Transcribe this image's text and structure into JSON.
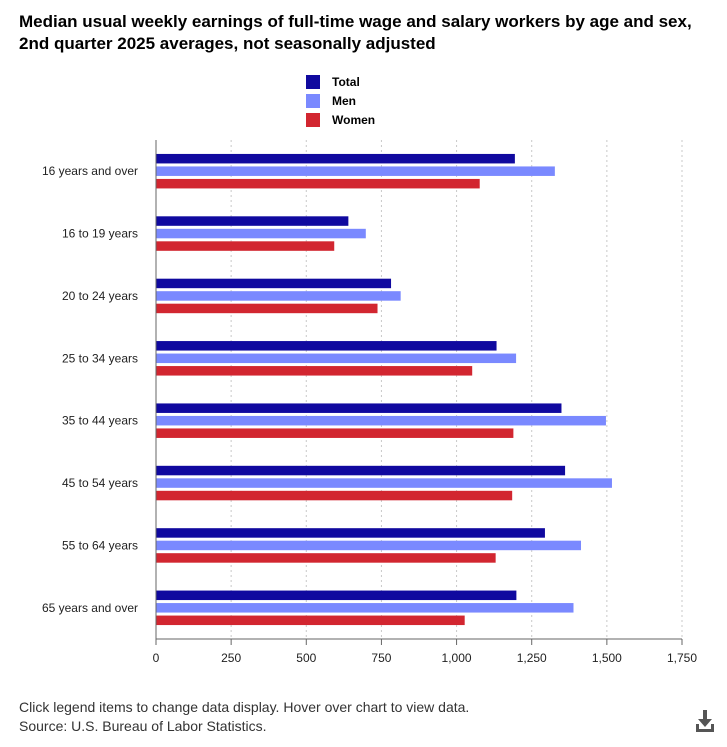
{
  "title": "Median usual weekly earnings of full-time wage and salary workers by age and sex, 2nd quarter 2025 averages, not seasonally adjusted",
  "footer": {
    "note": "Click legend items to change data display. Hover over chart to view data.",
    "source": "Source: U.S. Bureau of Labor Statistics."
  },
  "icons": {
    "download": "download-icon"
  },
  "chart_data": {
    "type": "bar",
    "orientation": "horizontal",
    "categories": [
      "16 years and over",
      "16 to 19 years",
      "20 to 24 years",
      "25 to 34 years",
      "35 to 44 years",
      "45 to 54 years",
      "55 to 64 years",
      "65 years and over"
    ],
    "series": [
      {
        "name": "Total",
        "color": "#10099f",
        "values": [
          1194,
          640,
          782,
          1133,
          1349,
          1361,
          1294,
          1199
        ]
      },
      {
        "name": "Men",
        "color": "#7a89ff",
        "values": [
          1327,
          698,
          814,
          1198,
          1497,
          1517,
          1414,
          1389
        ]
      },
      {
        "name": "Women",
        "color": "#d22630",
        "values": [
          1077,
          593,
          737,
          1052,
          1189,
          1185,
          1130,
          1027
        ]
      }
    ],
    "xlim": [
      0,
      1750
    ],
    "xticks": [
      0,
      250,
      500,
      750,
      1000,
      1250,
      1500,
      1750
    ],
    "xtick_labels": [
      "0",
      "250",
      "500",
      "750",
      "1,000",
      "1,250",
      "1,500",
      "1,750"
    ],
    "grid": "vertical dotted",
    "legend_position": "top-center"
  }
}
